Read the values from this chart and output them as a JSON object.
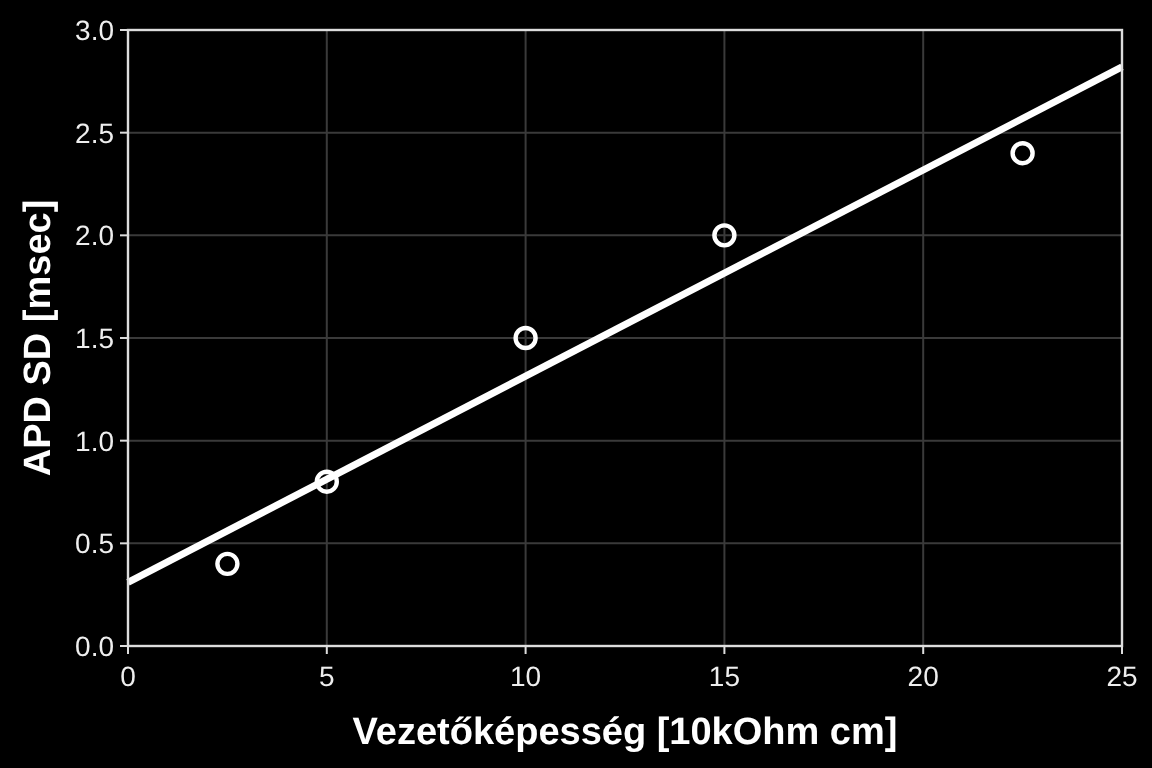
{
  "chart_data": {
    "type": "scatter",
    "xlabel": "Vezetőképesség [10kOhm cm]",
    "ylabel": "APD SD [msec]",
    "xlim": [
      0,
      25
    ],
    "xticks": [
      0,
      5,
      10,
      15,
      20,
      25
    ],
    "ylim": [
      0,
      3
    ],
    "yticks": [
      {
        "value": 0,
        "label": "0.0"
      },
      {
        "value": 0.5,
        "label": "0.5"
      },
      {
        "value": 1,
        "label": "1.0"
      },
      {
        "value": 1.5,
        "label": "1.5"
      },
      {
        "value": 2,
        "label": "2.0"
      },
      {
        "value": 2.5,
        "label": "2.5"
      },
      {
        "value": 3,
        "label": "3.0"
      }
    ],
    "grid": true,
    "series": [
      {
        "color": "#ffffff",
        "marker": "circle",
        "x": [
          2.5,
          5,
          10,
          15,
          22.5
        ],
        "values": [
          0.4,
          0.8,
          1.5,
          2.0,
          2.4
        ]
      },
      {
        "type": "line",
        "color": "#ffffff",
        "x": [
          0,
          25
        ],
        "values": [
          0.31,
          2.82
        ]
      }
    ]
  }
}
